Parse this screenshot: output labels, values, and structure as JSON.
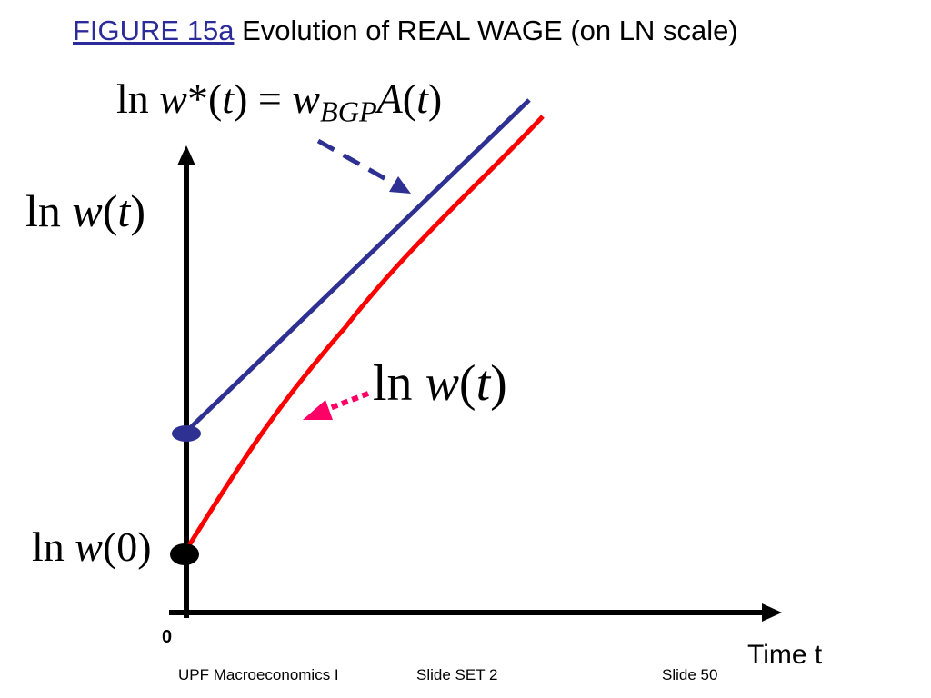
{
  "title": {
    "link_text": "FIGURE 15a",
    "text": "Evolution of REAL WAGE (on LN scale)"
  },
  "equations": {
    "top": {
      "ln": "ln",
      "w": "w",
      "star": "*",
      "paren_open": "(",
      "t": "t",
      "paren_close": ")",
      "eq": "=",
      "w2": "w",
      "sub": "BGP",
      "A": "A",
      "paren2_open": "(",
      "t2": "t",
      "paren2_close": ")"
    },
    "axis_label": {
      "ln": "ln",
      "w": "w",
      "open": "(",
      "t": "t",
      "close": ")"
    },
    "actual_label": {
      "ln": "ln",
      "w": "w",
      "open": "(",
      "t": "t",
      "close": ")"
    },
    "initial_label": {
      "ln": "ln",
      "w": "w",
      "arg": "(0)"
    }
  },
  "axes": {
    "origin": "0",
    "x_label": "Time t"
  },
  "footer": {
    "left": "UPF Macroeconomics I",
    "middle": "Slide SET 2",
    "right": "Slide 50"
  },
  "colors": {
    "bgp_line": "#2e3192",
    "actual_line": "#ff0000",
    "pointer_arrow": "#ff0066",
    "title_link": "#2b2b9a",
    "axes": "#000000"
  }
}
